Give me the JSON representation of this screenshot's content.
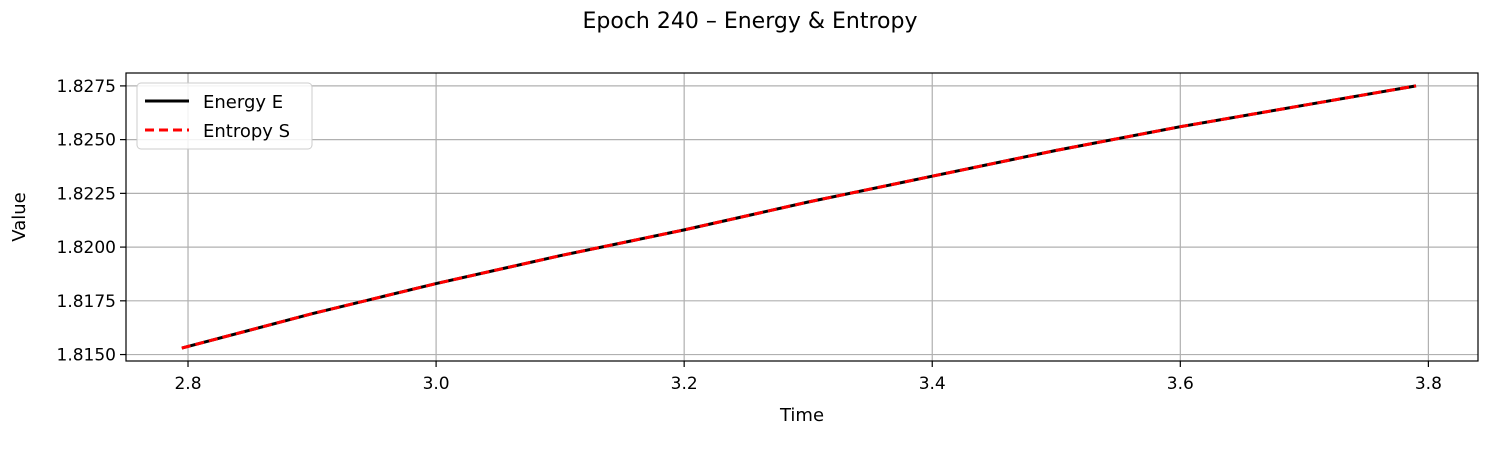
{
  "chart_data": {
    "type": "line",
    "title": "Epoch 240 – Energy & Entropy",
    "xlabel": "Time",
    "ylabel": "Value",
    "xlim": [
      2.75,
      3.84
    ],
    "ylim": [
      1.8147,
      1.8281
    ],
    "xticks": [
      2.8,
      3.0,
      3.2,
      3.4,
      3.6,
      3.8
    ],
    "xtick_labels": [
      "2.8",
      "3.0",
      "3.2",
      "3.4",
      "3.6",
      "3.8"
    ],
    "yticks": [
      1.815,
      1.8175,
      1.82,
      1.8225,
      1.825,
      1.8275
    ],
    "ytick_labels": [
      "1.8150",
      "1.8175",
      "1.8200",
      "1.8225",
      "1.8250",
      "1.8275"
    ],
    "grid": true,
    "legend_position": "top-left",
    "series": [
      {
        "name": "Energy E",
        "color": "#000000",
        "style": "solid",
        "x": [
          2.795,
          2.9,
          3.0,
          3.1,
          3.2,
          3.3,
          3.4,
          3.5,
          3.6,
          3.7,
          3.79
        ],
        "y": [
          1.8153,
          1.8169,
          1.8183,
          1.8196,
          1.8208,
          1.8221,
          1.8233,
          1.8245,
          1.8256,
          1.8266,
          1.8275
        ]
      },
      {
        "name": "Entropy S",
        "color": "#ff0000",
        "style": "dashed",
        "x": [
          2.795,
          2.9,
          3.0,
          3.1,
          3.2,
          3.3,
          3.4,
          3.5,
          3.6,
          3.7,
          3.79
        ],
        "y": [
          1.8153,
          1.8169,
          1.8183,
          1.8196,
          1.8208,
          1.8221,
          1.8233,
          1.8245,
          1.8256,
          1.8266,
          1.8275
        ]
      }
    ]
  }
}
